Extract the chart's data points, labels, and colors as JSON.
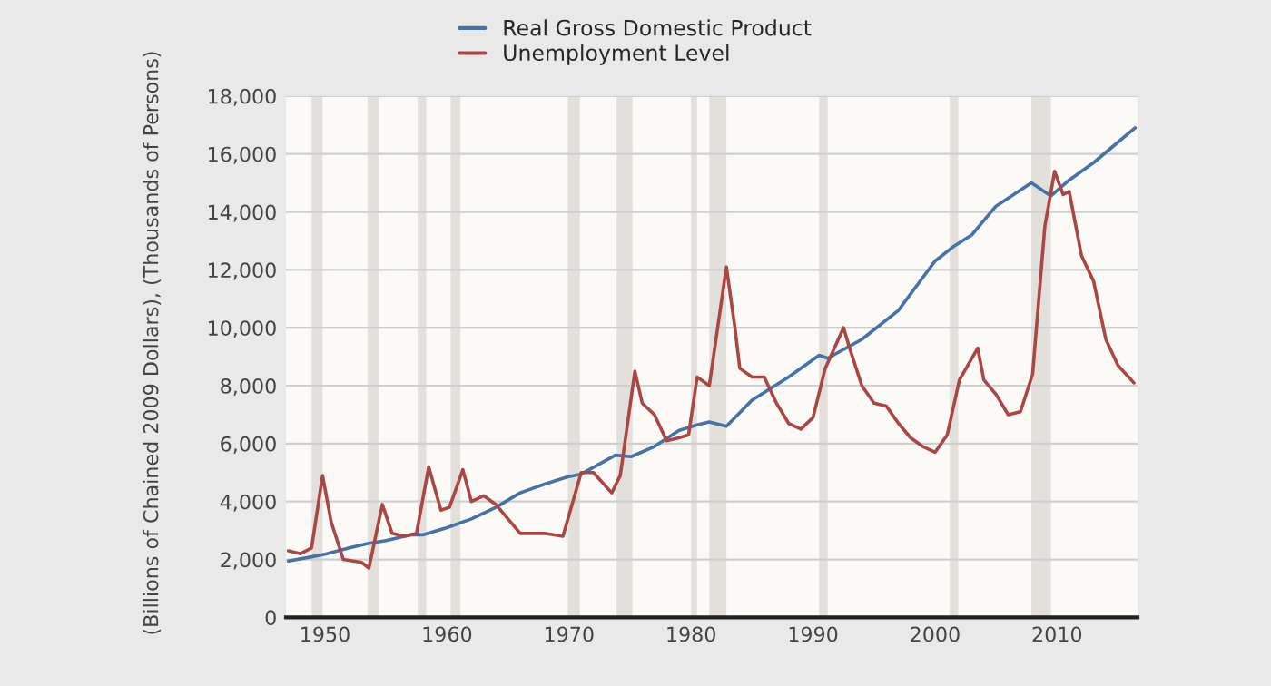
{
  "chart_data": {
    "type": "line",
    "ylabel": "(Billions of Chained 2009 Dollars), (Thousands of Persons)",
    "xlim": [
      1946.8,
      2016.6
    ],
    "xticks": [
      1950,
      1960,
      1970,
      1980,
      1990,
      2000,
      2010
    ],
    "ylim": [
      0,
      18000
    ],
    "yticks": [
      0,
      {
        "value": 2000,
        "label": "2,000"
      },
      {
        "value": 4000,
        "label": "4,000"
      },
      {
        "value": 6000,
        "label": "6,000"
      },
      {
        "value": 8000,
        "label": "8,000"
      },
      {
        "value": 10000,
        "label": "10,000"
      },
      {
        "value": 12000,
        "label": "12,000"
      },
      {
        "value": 14000,
        "label": "14,000"
      },
      {
        "value": 16000,
        "label": "16,000"
      },
      {
        "value": 18000,
        "label": "18,000"
      }
    ],
    "grid": "y",
    "legend": "top",
    "series": [
      {
        "name": "Real Gross Domestic Product",
        "color": "#4572a7",
        "x": [
          1947,
          1949,
          1950,
          1952,
          1953.5,
          1955,
          1957,
          1958,
          1960,
          1962,
          1964,
          1966,
          1968,
          1969.9,
          1971,
          1973.8,
          1975.1,
          1977,
          1979,
          1980.5,
          1981.5,
          1982.9,
          1985,
          1988,
          1990.5,
          1991.2,
          1994,
          1997,
          2000,
          2001.5,
          2003,
          2005,
          2007.9,
          2009.5,
          2011,
          2013,
          2016.4
        ],
        "values": [
          1950,
          2100,
          2180,
          2400,
          2550,
          2650,
          2850,
          2850,
          3100,
          3400,
          3800,
          4300,
          4600,
          4850,
          4950,
          5600,
          5550,
          5900,
          6450,
          6650,
          6750,
          6600,
          7500,
          8300,
          9050,
          8950,
          9600,
          10600,
          12300,
          12800,
          13200,
          14200,
          15000,
          14550,
          15100,
          15700,
          16900
        ]
      },
      {
        "name": "Unemployment Level",
        "color": "#aa4643",
        "x": [
          1947,
          1948,
          1948.9,
          1949.8,
          1950.5,
          1951.5,
          1953,
          1953.6,
          1954.7,
          1955.5,
          1956.5,
          1957.5,
          1958.5,
          1959.5,
          1960.2,
          1961.3,
          1962,
          1963,
          1964,
          1965,
          1966,
          1968,
          1969.5,
          1971,
          1972,
          1973.5,
          1974.2,
          1975.4,
          1976,
          1977,
          1978,
          1979,
          1979.8,
          1980.5,
          1981.5,
          1982.9,
          1983.6,
          1984,
          1985,
          1986,
          1987,
          1988,
          1989,
          1990,
          1991,
          1992.5,
          1993,
          1994,
          1995,
          1996,
          1997,
          1998,
          1999,
          2000,
          2001,
          2002,
          2003.5,
          2004,
          2005,
          2006,
          2007,
          2008,
          2009,
          2009.8,
          2010.5,
          2011,
          2012,
          2013,
          2014,
          2015,
          2016.3
        ],
        "values": [
          2300,
          2200,
          2400,
          4900,
          3300,
          2000,
          1900,
          1700,
          3900,
          2900,
          2800,
          2900,
          5200,
          3700,
          3800,
          5100,
          4000,
          4200,
          3900,
          3400,
          2900,
          2900,
          2800,
          5000,
          5000,
          4300,
          4900,
          8500,
          7400,
          7000,
          6100,
          6200,
          6300,
          8300,
          8000,
          12100,
          10000,
          8600,
          8300,
          8300,
          7400,
          6700,
          6500,
          6900,
          8600,
          10000,
          9300,
          8000,
          7400,
          7300,
          6700,
          6200,
          5900,
          5700,
          6300,
          8200,
          9300,
          8200,
          7700,
          7000,
          7100,
          8400,
          13500,
          15400,
          14600,
          14700,
          12500,
          11600,
          9600,
          8700,
          8100
        ]
      }
    ],
    "bands": [
      {
        "axis": "x",
        "from": 1948.9,
        "to": 1949.8,
        "color": "#e3e0dc"
      },
      {
        "axis": "x",
        "from": 1953.5,
        "to": 1954.4,
        "color": "#e3e0dc"
      },
      {
        "axis": "x",
        "from": 1957.6,
        "to": 1958.3,
        "color": "#e3e0dc"
      },
      {
        "axis": "x",
        "from": 1960.3,
        "to": 1961.1,
        "color": "#e3e0dc"
      },
      {
        "axis": "x",
        "from": 1969.9,
        "to": 1970.9,
        "color": "#e3e0dc"
      },
      {
        "axis": "x",
        "from": 1973.9,
        "to": 1975.2,
        "color": "#e3e0dc"
      },
      {
        "axis": "x",
        "from": 1980.0,
        "to": 1980.5,
        "color": "#e3e0dc"
      },
      {
        "axis": "x",
        "from": 1981.5,
        "to": 1982.9,
        "color": "#e3e0dc"
      },
      {
        "axis": "x",
        "from": 1990.5,
        "to": 1991.2,
        "color": "#e3e0dc"
      },
      {
        "axis": "x",
        "from": 2001.2,
        "to": 2001.9,
        "color": "#e3e0dc"
      },
      {
        "axis": "x",
        "from": 2007.9,
        "to": 2009.5,
        "color": "#e3e0dc"
      }
    ]
  }
}
